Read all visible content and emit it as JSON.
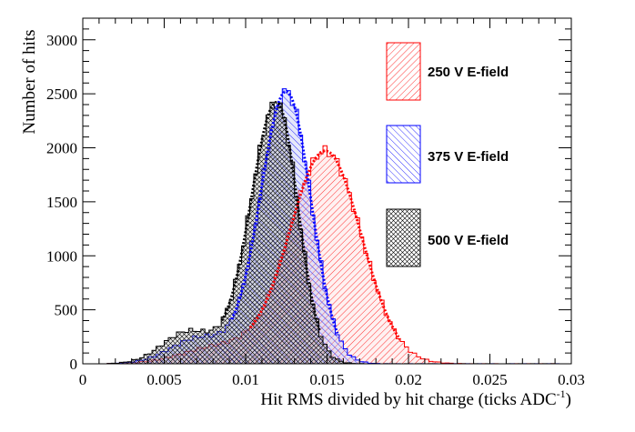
{
  "chart_data": {
    "type": "histogram",
    "xlabel": "Hit RMS divided by hit charge (ticks ADC",
    "xlabel_superscript": "-1",
    "xlabel_suffix": ")",
    "ylabel": "Number of hits",
    "xlim": [
      0,
      0.03
    ],
    "ylim": [
      0,
      3200
    ],
    "x_tick_labels": [
      "0",
      "0.005",
      "0.01",
      "0.015",
      "0.02",
      "0.025",
      "0.03"
    ],
    "y_tick_labels": [
      "0",
      "500",
      "1000",
      "1500",
      "2000",
      "2500",
      "3000"
    ],
    "grid": false,
    "legend_position": "right",
    "series": [
      {
        "name": "250 V E-field",
        "color": "#ff0000",
        "hatch": "diagonal-down",
        "peak": 0.0149,
        "sigma_left": 0.0022,
        "sigma_right": 0.0022,
        "amplitude": 1970,
        "tail_center": 0.0085,
        "tail_sigma": 0.0023,
        "tail_amplitude": 160
      },
      {
        "name": "375 V E-field",
        "color": "#0000ff",
        "hatch": "diagonal-up",
        "peak": 0.0125,
        "sigma_left": 0.0016,
        "sigma_right": 0.0015,
        "amplitude": 2520,
        "tail_center": 0.0072,
        "tail_sigma": 0.0018,
        "tail_amplitude": 240
      },
      {
        "name": "500 V E-field",
        "color": "#000000",
        "hatch": "cross",
        "peak": 0.0119,
        "sigma_left": 0.0016,
        "sigma_right": 0.0013,
        "amplitude": 2420,
        "tail_center": 0.0065,
        "tail_sigma": 0.0016,
        "tail_amplitude": 300
      }
    ]
  }
}
